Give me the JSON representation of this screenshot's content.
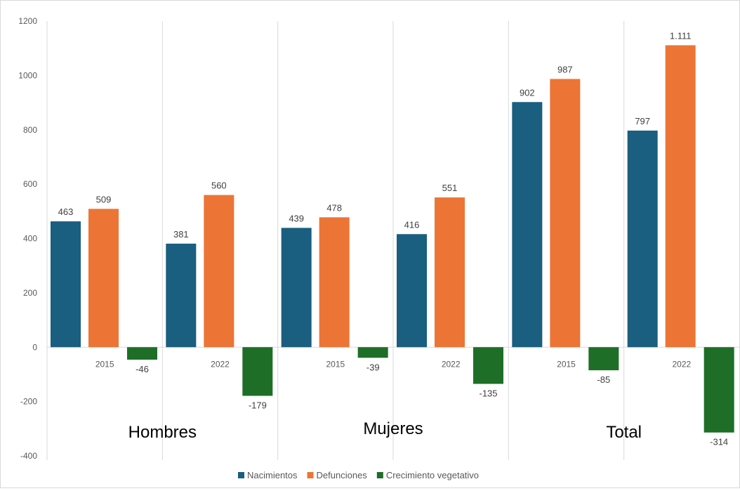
{
  "chart_data": {
    "type": "bar",
    "groups": [
      {
        "label": "Hombres",
        "years": [
          "2015",
          "2022"
        ]
      },
      {
        "label": "Mujeres",
        "years": [
          "2015",
          "2022"
        ]
      },
      {
        "label": "Total",
        "years": [
          "2015",
          "2022"
        ]
      }
    ],
    "series": [
      {
        "name": "Nacimientos",
        "color": "#1a5e80",
        "values": [
          463,
          381,
          439,
          416,
          902,
          797
        ],
        "labels": [
          "463",
          "381",
          "439",
          "416",
          "902",
          "797"
        ]
      },
      {
        "name": "Defunciones",
        "color": "#ec7535",
        "values": [
          509,
          560,
          478,
          551,
          987,
          1111
        ],
        "labels": [
          "509",
          "560",
          "478",
          "551",
          "987",
          "1.111"
        ]
      },
      {
        "name": "Crecimiento vegetativo",
        "color": "#1e6e27",
        "values": [
          -46,
          -179,
          -39,
          -135,
          -85,
          -314
        ],
        "labels": [
          "-46",
          "-179",
          "-39",
          "-135",
          "-85",
          "-314"
        ]
      }
    ],
    "yticks": [
      "1200",
      "1000",
      "800",
      "600",
      "400",
      "200",
      "0",
      "-200",
      "-400"
    ],
    "ylim": [
      -400,
      1200
    ],
    "grid": "vertical separators between categories",
    "legend_position": "bottom"
  }
}
